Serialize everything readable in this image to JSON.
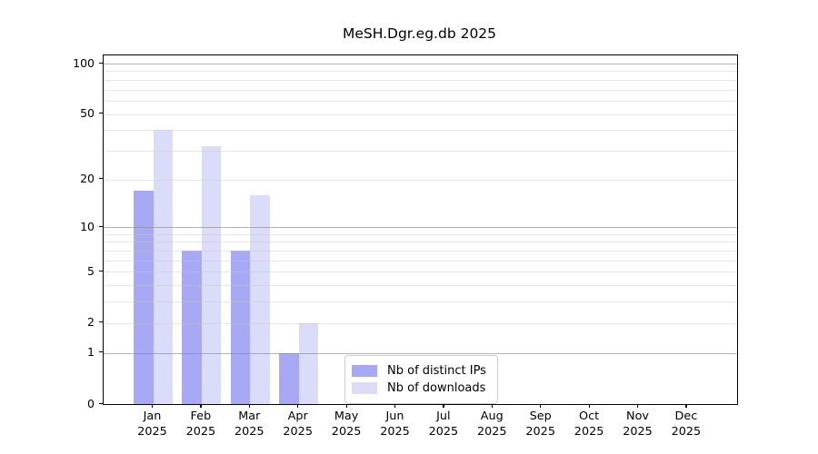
{
  "chart_data": {
    "type": "bar",
    "title": "MeSH.Dgr.eg.db 2025",
    "categories": [
      "Jan",
      "Feb",
      "Mar",
      "Apr",
      "May",
      "Jun",
      "Jul",
      "Aug",
      "Sep",
      "Oct",
      "Nov",
      "Dec"
    ],
    "year": "2025",
    "series": [
      {
        "name": "Nb of distinct IPs",
        "color": "#a8a8f5",
        "values": [
          17,
          7,
          7,
          1,
          0,
          0,
          0,
          0,
          0,
          0,
          0,
          0
        ]
      },
      {
        "name": "Nb of downloads",
        "color": "#dbdbfa",
        "values": [
          40,
          32,
          16,
          2,
          0,
          0,
          0,
          0,
          0,
          0,
          0,
          0
        ]
      }
    ],
    "scale": "log10(1+x)",
    "ylim": [
      0,
      100
    ],
    "yticks": [
      0,
      1,
      2,
      5,
      10,
      20,
      50,
      100
    ],
    "grid": {
      "major": [
        1,
        10,
        100
      ],
      "minor": [
        2,
        3,
        4,
        5,
        6,
        7,
        8,
        9,
        20,
        30,
        40,
        50,
        60,
        70,
        80,
        90
      ],
      "major_color": "#b0b0b0",
      "minor_color": "#e9e9e9"
    },
    "legend": {
      "entries": [
        "Nb of distinct IPs",
        "Nb of downloads"
      ],
      "position": "lower center"
    },
    "colors": {
      "distinct_ips": "#a8a8f5",
      "downloads": "#dbdbfa",
      "spine": "#000000",
      "background": "#ffffff"
    }
  }
}
